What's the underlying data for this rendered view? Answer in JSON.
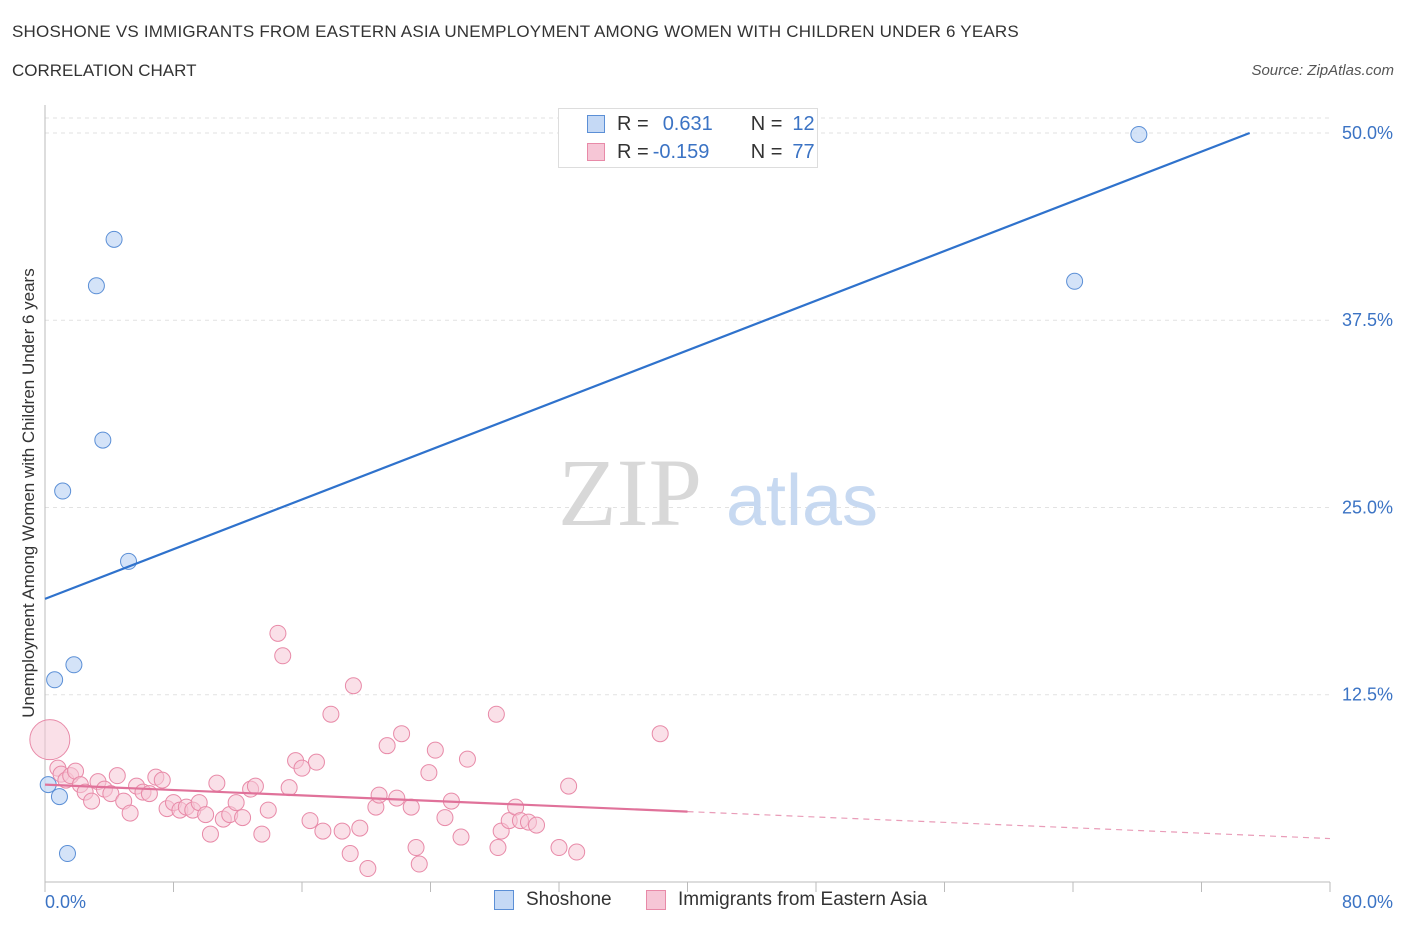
{
  "chart_data": {
    "type": "scatter",
    "title": "SHOSHONE VS IMMIGRANTS FROM EASTERN ASIA UNEMPLOYMENT AMONG WOMEN WITH CHILDREN UNDER 6 YEARS",
    "subtitle": "CORRELATION CHART",
    "source": "Source: ZipAtlas.com",
    "ylabel": "Unemployment Among Women with Children Under 6 years",
    "xlim": [
      0,
      80
    ],
    "ylim": [
      0,
      50
    ],
    "x_tick_labels": [
      "0.0%",
      "80.0%"
    ],
    "y_tick_labels": [
      "12.5%",
      "25.0%",
      "37.5%",
      "50.0%"
    ],
    "y_ticks": [
      12.5,
      25,
      37.5,
      50
    ],
    "grid": "horizontal-dashed",
    "watermark": {
      "zip": "ZIP",
      "atlas": "atlas"
    },
    "legend_stats": [
      {
        "r_label": "R =",
        "r_value": "0.631",
        "n_label": "N =",
        "n_value": "12"
      },
      {
        "r_label": "R =",
        "r_value": "-0.159",
        "n_label": "N =",
        "n_value": "77"
      }
    ],
    "series": [
      {
        "name": "Shoshone",
        "color": "#5b8fd6",
        "fill": "#c5d9f5",
        "line_color": "#2f72cc",
        "trend": {
          "x0": 0,
          "y0": 18.9,
          "x1": 75,
          "y1": 50.0,
          "solid_until": 75
        },
        "points": [
          [
            0.2,
            6.5
          ],
          [
            0.6,
            13.5
          ],
          [
            0.9,
            5.7
          ],
          [
            1.1,
            26.1
          ],
          [
            1.4,
            1.9
          ],
          [
            1.8,
            14.5
          ],
          [
            3.2,
            39.8
          ],
          [
            3.6,
            29.5
          ],
          [
            4.3,
            42.9
          ],
          [
            5.2,
            21.4
          ],
          [
            64.1,
            40.1
          ],
          [
            68.1,
            49.9
          ]
        ]
      },
      {
        "name": "Immigrants from Eastern Asia",
        "color": "#e88aa8",
        "fill": "#f6c6d6",
        "line_color": "#e0729a",
        "trend": {
          "x0": 0,
          "y0": 6.5,
          "x1": 80,
          "y1": 2.9,
          "solid_until": 40
        },
        "points": [
          [
            0.3,
            9.5
          ],
          [
            0.8,
            7.6
          ],
          [
            1.0,
            7.2
          ],
          [
            1.3,
            6.8
          ],
          [
            1.6,
            7.1
          ],
          [
            1.9,
            7.4
          ],
          [
            2.2,
            6.5
          ],
          [
            2.5,
            6.0
          ],
          [
            2.9,
            5.4
          ],
          [
            3.3,
            6.7
          ],
          [
            3.7,
            6.2
          ],
          [
            4.1,
            5.9
          ],
          [
            4.5,
            7.1
          ],
          [
            4.9,
            5.4
          ],
          [
            5.3,
            4.6
          ],
          [
            5.7,
            6.4
          ],
          [
            6.1,
            6.0
          ],
          [
            6.5,
            5.9
          ],
          [
            6.9,
            7.0
          ],
          [
            7.3,
            6.8
          ],
          [
            7.6,
            4.9
          ],
          [
            8.0,
            5.3
          ],
          [
            8.4,
            4.8
          ],
          [
            8.8,
            5.0
          ],
          [
            9.2,
            4.8
          ],
          [
            9.6,
            5.3
          ],
          [
            10.0,
            4.5
          ],
          [
            10.3,
            3.2
          ],
          [
            10.7,
            6.6
          ],
          [
            11.1,
            4.2
          ],
          [
            11.5,
            4.5
          ],
          [
            11.9,
            5.3
          ],
          [
            12.3,
            4.3
          ],
          [
            12.8,
            6.2
          ],
          [
            13.1,
            6.4
          ],
          [
            13.5,
            3.2
          ],
          [
            13.9,
            4.8
          ],
          [
            14.5,
            16.6
          ],
          [
            14.8,
            15.1
          ],
          [
            15.2,
            6.3
          ],
          [
            15.6,
            8.1
          ],
          [
            16.0,
            7.6
          ],
          [
            16.5,
            4.1
          ],
          [
            16.9,
            8.0
          ],
          [
            17.3,
            3.4
          ],
          [
            17.8,
            11.2
          ],
          [
            18.5,
            3.4
          ],
          [
            19.0,
            1.9
          ],
          [
            19.2,
            13.1
          ],
          [
            19.6,
            3.6
          ],
          [
            20.1,
            0.9
          ],
          [
            20.6,
            5.0
          ],
          [
            20.8,
            5.8
          ],
          [
            21.3,
            9.1
          ],
          [
            21.9,
            5.6
          ],
          [
            22.2,
            9.9
          ],
          [
            22.8,
            5.0
          ],
          [
            23.1,
            2.3
          ],
          [
            23.3,
            1.2
          ],
          [
            23.9,
            7.3
          ],
          [
            24.3,
            8.8
          ],
          [
            24.9,
            4.3
          ],
          [
            25.3,
            5.4
          ],
          [
            25.9,
            3.0
          ],
          [
            26.3,
            8.2
          ],
          [
            28.1,
            11.2
          ],
          [
            28.2,
            2.3
          ],
          [
            28.4,
            3.4
          ],
          [
            28.9,
            4.1
          ],
          [
            29.3,
            5.0
          ],
          [
            29.6,
            4.1
          ],
          [
            30.1,
            4.0
          ],
          [
            30.6,
            3.8
          ],
          [
            32.0,
            2.3
          ],
          [
            32.6,
            6.4
          ],
          [
            33.1,
            2.0
          ],
          [
            38.3,
            9.9
          ]
        ]
      }
    ]
  },
  "legend": {
    "items": [
      "Shoshone",
      "Immigrants from Eastern Asia"
    ]
  }
}
